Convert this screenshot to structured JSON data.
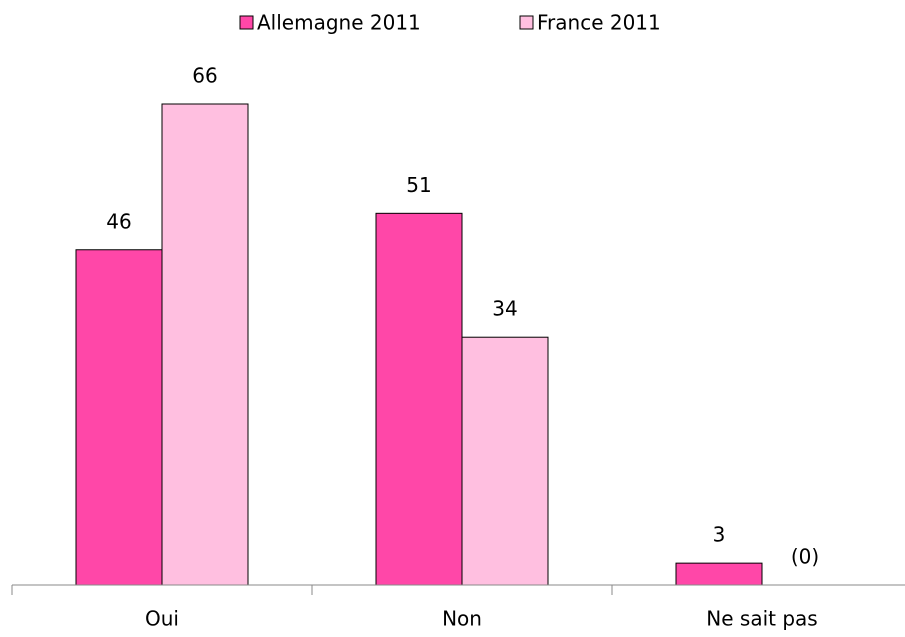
{
  "chart_data": {
    "type": "bar",
    "categories": [
      "Oui",
      "Non",
      "Ne sait pas"
    ],
    "series": [
      {
        "name": "Allemagne 2011",
        "color": "#ff47a8",
        "values": [
          46,
          51,
          3
        ]
      },
      {
        "name": "France 2011",
        "color": "#ffbfe0",
        "values": [
          66,
          34,
          0
        ],
        "value_labels": [
          "66",
          "34",
          "(0)"
        ]
      }
    ],
    "legend": "top"
  }
}
